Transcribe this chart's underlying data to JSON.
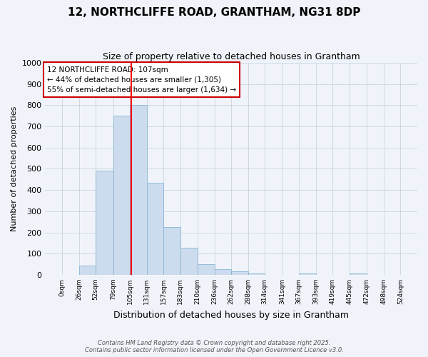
{
  "title": "12, NORTHCLIFFE ROAD, GRANTHAM, NG31 8DP",
  "subtitle": "Size of property relative to detached houses in Grantham",
  "xlabel": "Distribution of detached houses by size in Grantham",
  "ylabel": "Number of detached properties",
  "bin_edges": [
    0,
    26,
    52,
    79,
    105,
    131,
    157,
    183,
    210,
    236,
    262,
    288,
    314,
    341,
    367,
    393,
    419,
    445,
    472,
    498,
    524
  ],
  "bar_heights": [
    0,
    42,
    490,
    750,
    800,
    435,
    225,
    128,
    50,
    28,
    15,
    8,
    0,
    0,
    8,
    0,
    0,
    5,
    0,
    0
  ],
  "bar_color": "#ccdcee",
  "bar_edgecolor": "#8ab4d4",
  "red_line_x": 107,
  "ylim": [
    0,
    1000
  ],
  "yticks": [
    0,
    100,
    200,
    300,
    400,
    500,
    600,
    700,
    800,
    900,
    1000
  ],
  "annotation_text": "12 NORTHCLIFFE ROAD: 107sqm\n← 44% of detached houses are smaller (1,305)\n55% of semi-detached houses are larger (1,634) →",
  "annotation_box_color": "#ffffff",
  "annotation_box_edgecolor": "#cc0000",
  "footer_line1": "Contains HM Land Registry data © Crown copyright and database right 2025.",
  "footer_line2": "Contains public sector information licensed under the Open Government Licence v3.0.",
  "background_color": "#f0f4fa",
  "plot_background_color": "#f0f4fa",
  "grid_color": "#c8d4e0"
}
